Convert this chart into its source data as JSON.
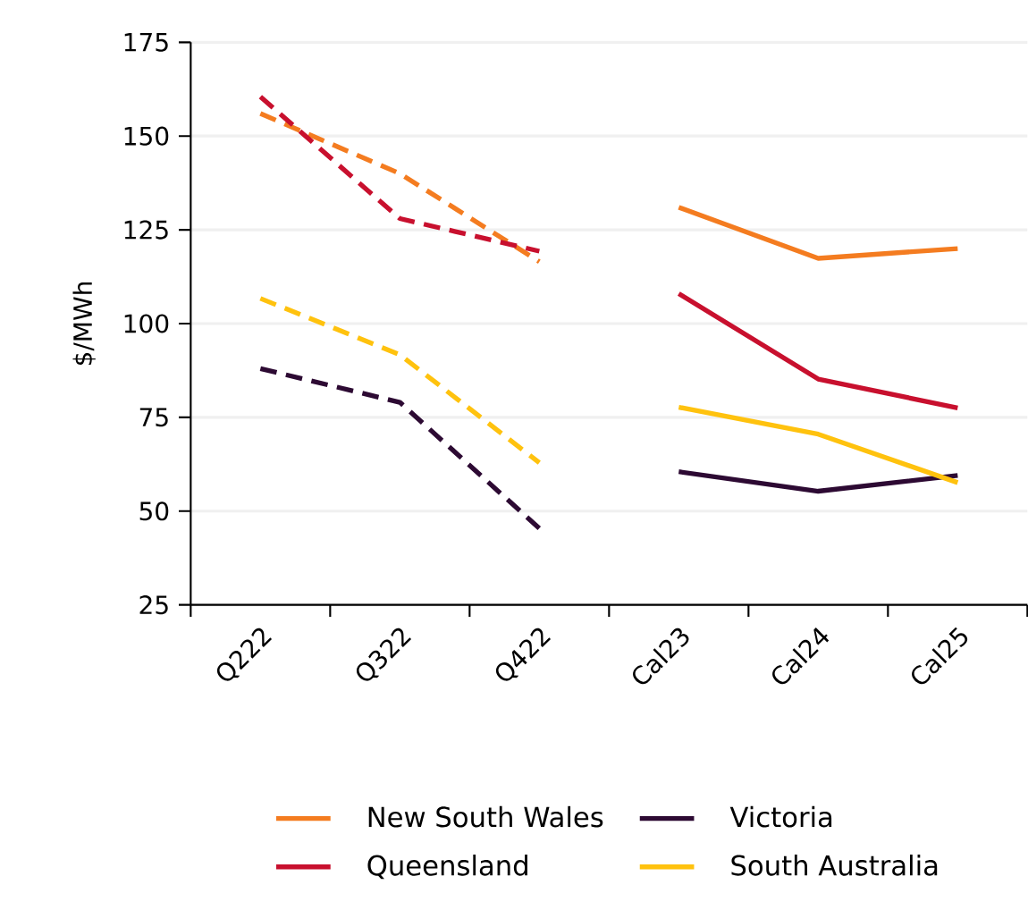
{
  "chart_data": {
    "type": "line",
    "ylabel": "$/MWh",
    "categories": [
      "Q222",
      "Q322",
      "Q422",
      "Cal23",
      "Cal24",
      "Cal25"
    ],
    "ylim": [
      25,
      175
    ],
    "yticks": [
      25,
      50,
      75,
      100,
      125,
      150,
      175
    ],
    "grid": "y",
    "legend": "bottom",
    "marker": "none",
    "series": [
      {
        "name": "New South Wales",
        "color": "#f47c20",
        "line_style": "solid",
        "values": [
          null,
          null,
          null,
          131,
          117.4,
          120
        ]
      },
      {
        "name": "Victoria",
        "color": "#2d0a33",
        "line_style": "solid",
        "values": [
          null,
          null,
          null,
          60.5,
          55.3,
          59.5
        ]
      },
      {
        "name": "Queensland",
        "color": "#c8102e",
        "line_style": "solid",
        "values": [
          null,
          null,
          null,
          108,
          85.2,
          77.5
        ]
      },
      {
        "name": "South Australia",
        "color": "#ffc20e",
        "line_style": "solid",
        "values": [
          null,
          null,
          null,
          77.7,
          70.5,
          57.6
        ]
      },
      {
        "color": "#f47c20",
        "line_style": "dashed",
        "values": [
          156,
          140,
          116.5,
          null,
          null,
          null
        ]
      },
      {
        "color": "#2d0a33",
        "line_style": "dashed",
        "values": [
          88,
          79,
          45.4,
          null,
          null,
          null
        ]
      },
      {
        "color": "#c8102e",
        "line_style": "dashed",
        "values": [
          160.5,
          128,
          119.3,
          null,
          null,
          null
        ]
      },
      {
        "color": "#ffc20e",
        "line_style": "dashed",
        "values": [
          106.7,
          91.7,
          62.9,
          null,
          null,
          null
        ]
      }
    ]
  }
}
